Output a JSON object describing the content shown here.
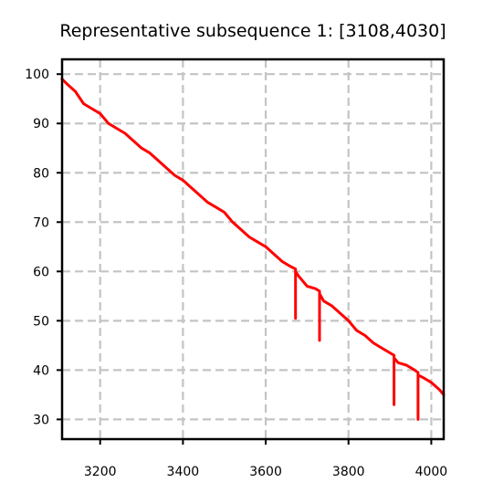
{
  "chart_data": {
    "type": "line",
    "title": "Representative subsequence 1: [3108,4030]",
    "xlabel": "",
    "ylabel": "",
    "xlim": [
      3108,
      4030
    ],
    "ylim": [
      26,
      103
    ],
    "xticks": [
      3200,
      3400,
      3600,
      3800,
      4000
    ],
    "yticks": [
      30,
      40,
      50,
      60,
      70,
      80,
      90,
      100
    ],
    "grid": true,
    "series_color": "#ff0000",
    "series": [
      {
        "x": [
          3108,
          3120,
          3140,
          3160,
          3180,
          3200,
          3220,
          3240,
          3260,
          3280,
          3300,
          3320,
          3340,
          3360,
          3380,
          3400,
          3420,
          3440,
          3460,
          3480,
          3500,
          3520,
          3540,
          3560,
          3580,
          3600,
          3620,
          3640,
          3660,
          3672,
          3672,
          3672,
          3680,
          3700,
          3720,
          3730,
          3730,
          3730,
          3740,
          3760,
          3780,
          3800,
          3820,
          3840,
          3860,
          3880,
          3900,
          3910,
          3910,
          3910,
          3920,
          3940,
          3960,
          3968,
          3968,
          3968,
          3980,
          4000,
          4020,
          4030
        ],
        "y": [
          99,
          98,
          96.5,
          94,
          93,
          92,
          90,
          89,
          88,
          86.5,
          85,
          84,
          82.5,
          81,
          79.5,
          78.5,
          77,
          75.5,
          74,
          73,
          72,
          70,
          68.5,
          67,
          66,
          65,
          63.5,
          62,
          61,
          60.5,
          50.5,
          60,
          59,
          57,
          56.5,
          56,
          46,
          55.5,
          54,
          53,
          51.5,
          50,
          48,
          47,
          45.5,
          44.5,
          43.5,
          43,
          33,
          42.5,
          41.5,
          41,
          40,
          39.5,
          30,
          39,
          38.5,
          37.5,
          36,
          35
        ]
      }
    ]
  }
}
